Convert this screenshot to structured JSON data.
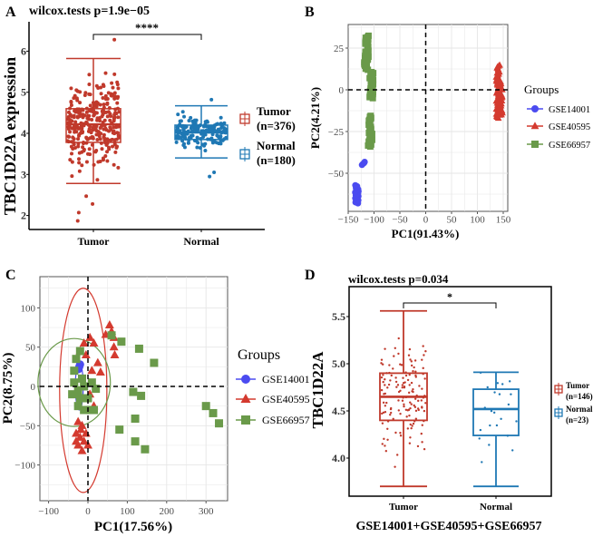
{
  "chart_data": [
    {
      "panel": "A",
      "type": "box",
      "title": "wilcox.tests p=1.9e−05",
      "significance": "****",
      "ylabel": "TBC1D22A expression",
      "xlabel": "",
      "categories": [
        "Tumor",
        "Normal"
      ],
      "yticks": [
        "2",
        "3",
        "4",
        "5",
        "6"
      ],
      "ylim": [
        1.7,
        6.5
      ],
      "boxes": [
        {
          "name": "Tumor",
          "min": 2.78,
          "q1": 3.78,
          "median": 4.22,
          "q3": 4.6,
          "max": 5.82,
          "outliers": [
            6.28,
            2.47,
            2.07,
            2.28,
            1.87
          ],
          "color": "#c0392b"
        },
        {
          "name": "Normal",
          "min": 3.4,
          "q1": 3.85,
          "median": 4.02,
          "q3": 4.2,
          "max": 4.67,
          "outliers": [
            4.82,
            3.05,
            2.95
          ],
          "color": "#1f78b4"
        }
      ],
      "legend": [
        {
          "label": "Tumor",
          "n": "(n=376)"
        },
        {
          "label": "Normal",
          "n": "(n=180)"
        }
      ]
    },
    {
      "panel": "B",
      "type": "scatter",
      "xlabel": "PC1(91.43%)",
      "ylabel": "PC2(4.21%)",
      "xticks": [
        "−150",
        "−100",
        "−50",
        "0",
        "50",
        "100",
        "150"
      ],
      "yticks": [
        "−50",
        "−25",
        "0",
        "25"
      ],
      "xlim": [
        -150,
        155
      ],
      "ylim": [
        -73,
        38
      ],
      "grid": true,
      "legend_title": "Groups",
      "legend_position": "right",
      "series": [
        {
          "name": "GSE14001",
          "marker": "circle",
          "color": "#4b4bf0",
          "clusters": [
            {
              "x": -120,
              "y": [
                -45,
                -43
              ]
            },
            {
              "x": -133,
              "y": [
                -68,
                -57
              ]
            }
          ]
        },
        {
          "name": "GSE40595",
          "marker": "triangle",
          "color": "#d43a2f",
          "clusters": [
            {
              "x": 140,
              "y": [
                -17,
                15
              ]
            },
            {
              "x": 145,
              "y": [
                -15,
                5
              ]
            }
          ]
        },
        {
          "name": "GSE66957",
          "marker": "square",
          "color": "#6a9a4a",
          "clusters": [
            {
              "x": -114,
              "y": [
                12,
                33
              ]
            },
            {
              "x": -117,
              "y": [
                14,
                17
              ]
            },
            {
              "x": -105,
              "y": [
                -5,
                11
              ]
            },
            {
              "x": -107,
              "y": [
                -30,
                -15
              ]
            },
            {
              "x": -108,
              "y": [
                -34,
                -30
              ]
            }
          ]
        }
      ]
    },
    {
      "panel": "C",
      "type": "scatter",
      "xlabel": "PC1(17.56%)",
      "ylabel": "PC2(8.75%)",
      "xticks": [
        "−100",
        "0",
        "100",
        "200",
        "300"
      ],
      "yticks": [
        "−100",
        "−50",
        "0",
        "50",
        "100"
      ],
      "xlim": [
        -110,
        350
      ],
      "ylim": [
        -140,
        128
      ],
      "grid": true,
      "legend_title": "Groups",
      "legend_position": "right",
      "series": [
        {
          "name": "GSE14001",
          "marker": "circle",
          "color": "#4b4bf0",
          "points": [
            [
              -20,
              28
            ],
            [
              -24,
              22
            ],
            [
              -22,
              25
            ]
          ],
          "ellipse": {
            "cx": -22,
            "cy": 0,
            "rx": 10,
            "ry": 30
          }
        },
        {
          "name": "GSE40595",
          "marker": "triangle",
          "color": "#d43a2f",
          "points": [
            [
              55,
              78
            ],
            [
              60,
              70
            ],
            [
              66,
              62
            ],
            [
              45,
              66
            ],
            [
              66,
              50
            ],
            [
              68,
              40
            ],
            [
              5,
              62
            ],
            [
              15,
              55
            ],
            [
              25,
              30
            ],
            [
              32,
              18
            ],
            [
              15,
              -25
            ],
            [
              -10,
              55
            ],
            [
              -20,
              45
            ],
            [
              -5,
              40
            ],
            [
              -25,
              -45
            ],
            [
              -15,
              -50
            ],
            [
              -30,
              -60
            ],
            [
              -20,
              -65
            ],
            [
              -10,
              -70
            ],
            [
              -25,
              -75
            ],
            [
              -15,
              -82
            ],
            [
              -5,
              -60
            ],
            [
              0,
              -75
            ],
            [
              -30,
              -70
            ],
            [
              -18,
              -55
            ],
            [
              5,
              -10
            ],
            [
              10,
              20
            ]
          ],
          "ellipse": {
            "cx": -12,
            "cy": -5,
            "rx": 60,
            "ry": 130
          }
        },
        {
          "name": "GSE66957",
          "marker": "square",
          "color": "#6a9a4a",
          "points": [
            [
              60,
              65
            ],
            [
              85,
              57
            ],
            [
              130,
              48
            ],
            [
              168,
              30
            ],
            [
              115,
              -7
            ],
            [
              135,
              -12
            ],
            [
              300,
              -25
            ],
            [
              318,
              -34
            ],
            [
              333,
              -47
            ],
            [
              80,
              -55
            ],
            [
              120,
              -41
            ],
            [
              120,
              -70
            ],
            [
              145,
              -80
            ],
            [
              20,
              -3
            ],
            [
              -35,
              20
            ],
            [
              -40,
              -10
            ],
            [
              -25,
              -5
            ],
            [
              -15,
              10
            ],
            [
              -30,
              35
            ],
            [
              -20,
              45
            ],
            [
              -10,
              0
            ],
            [
              -25,
              -25
            ],
            [
              -10,
              -30
            ],
            [
              5,
              -30
            ],
            [
              15,
              -30
            ],
            [
              0,
              -15
            ],
            [
              -35,
              5
            ],
            [
              -20,
              -15
            ],
            [
              10,
              5
            ]
          ],
          "ellipse": {
            "cx": -35,
            "cy": 5,
            "rx": 92,
            "ry": 56
          }
        }
      ]
    },
    {
      "panel": "D",
      "type": "box",
      "title": "wilcox.tests p=0.034",
      "significance": "*",
      "ylabel": "TBC1D22A",
      "xlabel": "GSE14001+GSE40595+GSE66957",
      "categories": [
        "Tumor",
        "Normal"
      ],
      "yticks": [
        "4.0",
        "4.5",
        "5.0",
        "5.5"
      ],
      "ylim": [
        3.62,
        5.72
      ],
      "boxes": [
        {
          "name": "Tumor",
          "min": 3.7,
          "q1": 4.4,
          "median": 4.65,
          "q3": 4.9,
          "max": 5.56,
          "color": "#c0392b"
        },
        {
          "name": "Normal",
          "min": 3.7,
          "q1": 4.24,
          "median": 4.52,
          "q3": 4.73,
          "max": 4.91,
          "color": "#1f78b4"
        }
      ],
      "legend": [
        {
          "label": "Tumor",
          "n": "(n=146)"
        },
        {
          "label": "Normal",
          "n": "(n=23)"
        }
      ]
    }
  ],
  "panel_labels": [
    "A",
    "B",
    "C",
    "D"
  ]
}
